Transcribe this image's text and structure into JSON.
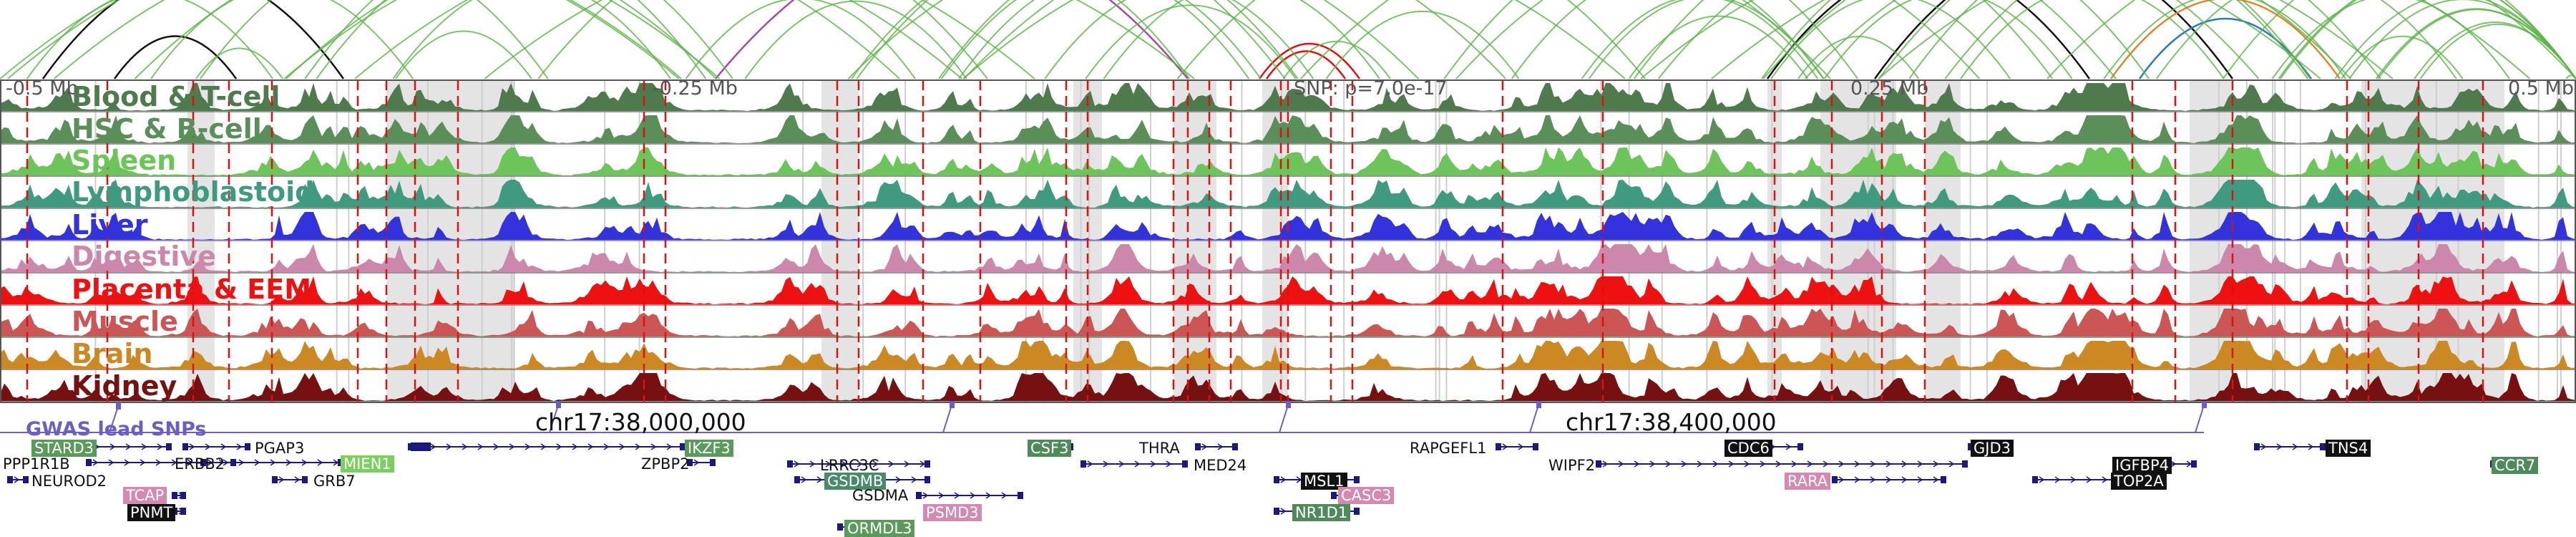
{
  "colors": {
    "frame": "#555555",
    "highlight_band": "#e4e4e4",
    "snp_line": "#dd1111",
    "gene_stroke": "#1a1a7a",
    "snp_marker": "#6b5fc7"
  },
  "axis": {
    "ticks": [
      {
        "label": "-0.5 Mb",
        "pos": 0.0
      },
      {
        "label": "-0.25 Mb",
        "pos": 0.25
      },
      {
        "label": "SNP: p=7.0e-17",
        "pos": 0.5
      },
      {
        "label": "0.25 Mb",
        "pos": 0.75
      },
      {
        "label": "0.5 Mb",
        "pos": 1.0
      }
    ],
    "coordinates": [
      {
        "label": "chr17:38,000,000"
      },
      {
        "label": "chr17:38,400,000"
      }
    ]
  },
  "tracks": [
    {
      "name": "Blood & T-cell",
      "color": "#4e7a4e"
    },
    {
      "name": "HSC & B-cell",
      "color": "#5a8f5a"
    },
    {
      "name": "Spleen",
      "color": "#6cc45a"
    },
    {
      "name": "Lymphoblastoid",
      "color": "#3f9a80"
    },
    {
      "name": "Liver",
      "color": "#3333dd"
    },
    {
      "name": "Digestive",
      "color": "#cc88aa"
    },
    {
      "name": "Placenta & EEM",
      "color": "#ee1111"
    },
    {
      "name": "Muscle",
      "color": "#cc5555"
    },
    {
      "name": "Brain",
      "color": "#cc8822"
    },
    {
      "name": "Kidney",
      "color": "#771111"
    }
  ],
  "snp_section": {
    "title": "GWAS lead SNPs"
  },
  "genes": [
    {
      "name": "STARD3",
      "style": "box",
      "color": "#5a9a5a"
    },
    {
      "name": "PGAP3",
      "style": "plain"
    },
    {
      "name": "PPP1R1B",
      "style": "plain"
    },
    {
      "name": "ERBB2",
      "style": "plain"
    },
    {
      "name": "MIEN1",
      "style": "box",
      "color": "#7ccf5e"
    },
    {
      "name": "NEUROD2",
      "style": "plain"
    },
    {
      "name": "GRB7",
      "style": "plain"
    },
    {
      "name": "TCAP",
      "style": "box",
      "color": "#d48ab0"
    },
    {
      "name": "PNMT",
      "style": "box",
      "color": "#111111"
    },
    {
      "name": "IKZF3",
      "style": "box",
      "color": "#5a9a5a"
    },
    {
      "name": "ZPBP2",
      "style": "plain"
    },
    {
      "name": "LRRC3C",
      "style": "plain"
    },
    {
      "name": "GSDMB",
      "style": "box",
      "color": "#4a8a6a"
    },
    {
      "name": "GSDMA",
      "style": "plain"
    },
    {
      "name": "PSMD3",
      "style": "box",
      "color": "#d48ab0"
    },
    {
      "name": "ORMDL3",
      "style": "box",
      "color": "#5a9a5a"
    },
    {
      "name": "CSF3",
      "style": "box",
      "color": "#4e8a5a"
    },
    {
      "name": "THRA",
      "style": "plain"
    },
    {
      "name": "MED24",
      "style": "plain"
    },
    {
      "name": "MSL1",
      "style": "box",
      "color": "#111111"
    },
    {
      "name": "CASC3",
      "style": "box",
      "color": "#d48ab0"
    },
    {
      "name": "NR1D1",
      "style": "box",
      "color": "#4e8a5a"
    },
    {
      "name": "RAPGEFL1",
      "style": "plain"
    },
    {
      "name": "WIPF2",
      "style": "plain"
    },
    {
      "name": "CDC6",
      "style": "box",
      "color": "#111111"
    },
    {
      "name": "RARA",
      "style": "box",
      "color": "#d48ab0"
    },
    {
      "name": "GJD3",
      "style": "box",
      "color": "#111111"
    },
    {
      "name": "IGFBP4",
      "style": "box",
      "color": "#111111"
    },
    {
      "name": "TOP2A",
      "style": "box",
      "color": "#111111"
    },
    {
      "name": "TNS4",
      "style": "box",
      "color": "#111111"
    },
    {
      "name": "CCR7",
      "style": "box",
      "color": "#4e8a5a"
    }
  ]
}
